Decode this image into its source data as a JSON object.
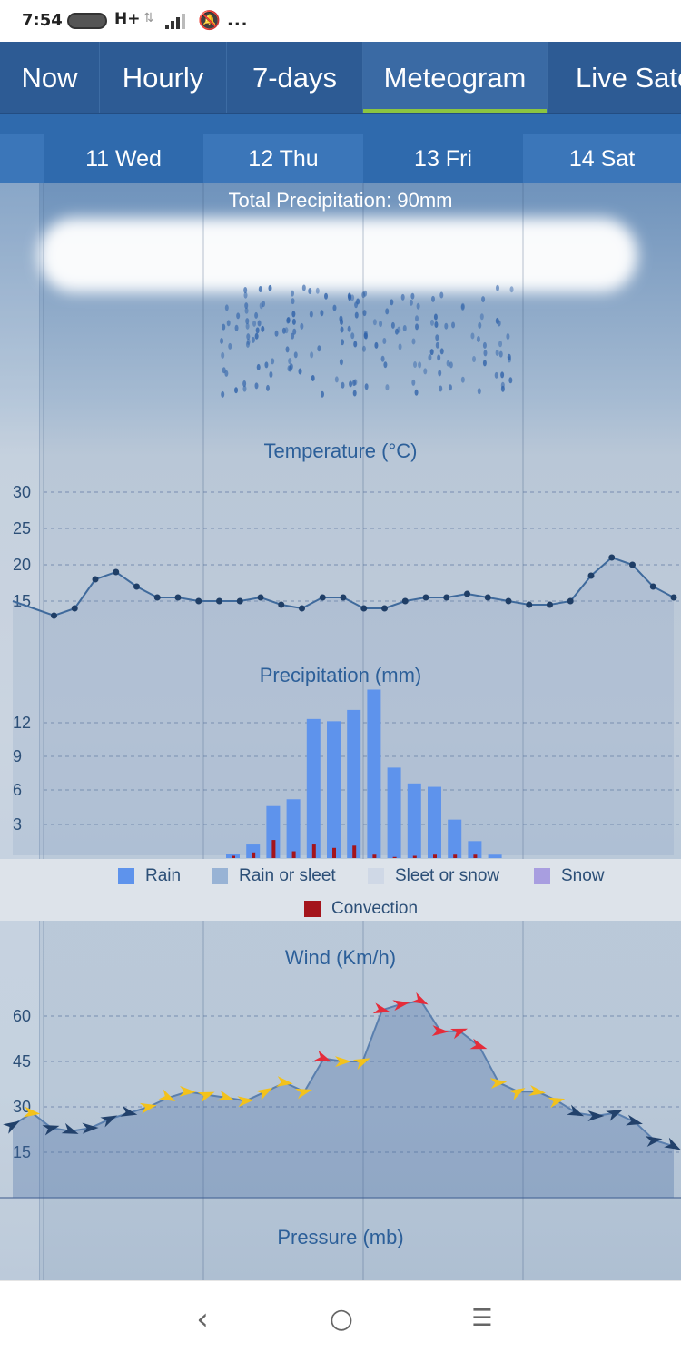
{
  "status_bar": {
    "time": "7:54",
    "network": "H+",
    "more": "..."
  },
  "tabs": [
    {
      "label": "Now"
    },
    {
      "label": "Hourly"
    },
    {
      "label": "7-days"
    },
    {
      "label": "Meteogram",
      "active": true
    },
    {
      "label": "Live Sate"
    }
  ],
  "days": [
    {
      "label": "11 Wed"
    },
    {
      "label": "12 Thu"
    },
    {
      "label": "13 Fri"
    },
    {
      "label": "14 Sat"
    }
  ],
  "weather": {
    "total_precipitation": "Total Precipitation: 90mm",
    "icon": "cloud-rain-icon"
  },
  "colors": {
    "rain": "#5e93ec",
    "rain_or_sleet": "#98b3d5",
    "sleet_or_snow": "#cfd8e6",
    "snow": "#a89ee0",
    "convection": "#a4141c",
    "accent_tab": "#8bc540",
    "wind_strong": "#e52c3a",
    "wind_moderate": "#f3c21b",
    "wind_light": "#22416b"
  },
  "chart_data": [
    {
      "type": "line",
      "title": "Temperature (°C)",
      "y_ticks": [
        "30",
        "25",
        "20",
        "15"
      ],
      "ylim": [
        10,
        32
      ],
      "values": [
        15,
        14,
        13,
        14,
        18,
        19,
        17,
        15.5,
        15.5,
        15,
        15,
        15,
        15.5,
        14.5,
        14,
        15.5,
        15.5,
        14,
        14,
        15,
        15.5,
        15.5,
        16,
        15.5,
        15,
        14.5,
        14.5,
        15,
        18.5,
        21,
        20,
        17,
        15.5
      ]
    },
    {
      "type": "bar",
      "title": "Precipitation (mm)",
      "y_ticks": [
        "12",
        "9",
        "6",
        "3"
      ],
      "ylim": [
        0,
        14.5
      ],
      "legend": [
        {
          "label": "Rain",
          "color": "#5e93ec"
        },
        {
          "label": "Rain or sleet",
          "color": "#98b3d5"
        },
        {
          "label": "Sleet or snow",
          "color": "#cfd8e6"
        },
        {
          "label": "Snow",
          "color": "#a89ee0"
        },
        {
          "label": "Convection",
          "color": "#a4141c"
        }
      ],
      "series": [
        {
          "name": "Rain",
          "values": [
            0.4,
            1.2,
            4.6,
            5.2,
            12.3,
            12.1,
            13.1,
            14.9,
            8.0,
            6.6,
            6.3,
            3.4,
            1.5,
            0.3
          ]
        },
        {
          "name": "Convection",
          "values": [
            0.2,
            0.5,
            1.6,
            0.6,
            1.2,
            0.9,
            1.1,
            0.3,
            0.1,
            0.2,
            0.3,
            0.3,
            0.3,
            0.0
          ]
        }
      ]
    },
    {
      "type": "area",
      "title": "Wind (Km/h)",
      "y_ticks": [
        "60",
        "45",
        "30",
        "15"
      ],
      "ylim": [
        0,
        75
      ],
      "values": [
        24,
        28,
        23,
        22,
        23,
        26,
        28,
        30,
        33,
        35,
        34,
        33,
        32,
        35,
        38,
        35,
        46,
        45,
        45,
        62,
        64,
        65,
        55,
        55,
        50,
        38,
        35,
        35,
        32,
        28,
        27,
        28,
        25,
        19,
        17
      ],
      "strength": [
        "l",
        "m",
        "l",
        "l",
        "l",
        "l",
        "l",
        "m",
        "m",
        "m",
        "m",
        "m",
        "m",
        "m",
        "m",
        "m",
        "s",
        "m",
        "m",
        "s",
        "s",
        "s",
        "s",
        "s",
        "s",
        "m",
        "m",
        "m",
        "m",
        "l",
        "l",
        "l",
        "l",
        "l",
        "l"
      ]
    },
    {
      "type": "line",
      "title": "Pressure (mb)"
    }
  ],
  "bottom_nav": {
    "back": "‹",
    "home": "○",
    "menu": "☰"
  }
}
